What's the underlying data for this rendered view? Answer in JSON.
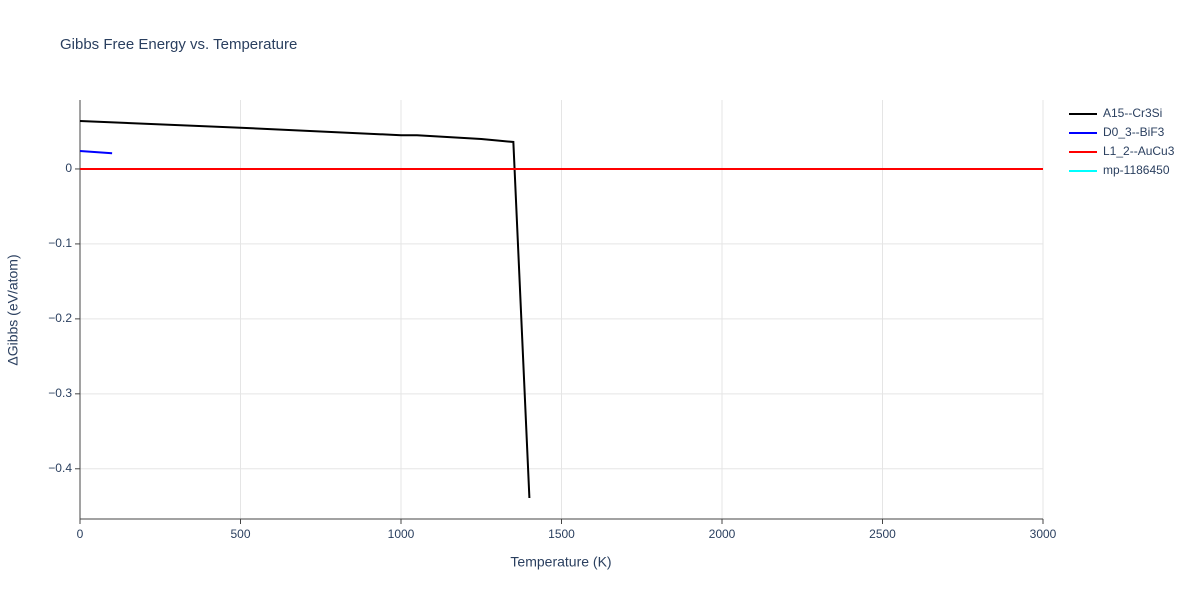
{
  "chart_data": {
    "type": "line",
    "title": "Gibbs Free Energy vs. Temperature",
    "x_label": "Temperature (K)",
    "y_label": "ΔGibbs (eV/atom)",
    "xlim": [
      0,
      3000
    ],
    "xticks": [
      0,
      500,
      1000,
      1500,
      2000,
      2500,
      3000
    ],
    "ylim": [
      -0.467,
      0.092
    ],
    "yticks": [
      {
        "value": -0.4,
        "label": "−0.4"
      },
      {
        "value": -0.3,
        "label": "−0.3"
      },
      {
        "value": -0.2,
        "label": "−0.2"
      },
      {
        "value": -0.1,
        "label": "−0.1"
      },
      0
    ],
    "grid": true,
    "legend": "right",
    "series": [
      {
        "name": "A15--Cr3Si",
        "color": "#000000",
        "x": [
          0,
          500,
          1000,
          1050,
          1250,
          1300,
          1350,
          1400
        ],
        "values": [
          0.064,
          0.055,
          0.045,
          0.045,
          0.04,
          0.038,
          0.036,
          -0.439
        ]
      },
      {
        "name": "D0_3--BiF3",
        "color": "#0000ff",
        "x": [
          0,
          100
        ],
        "values": [
          0.024,
          0.021
        ]
      },
      {
        "name": "L1_2--AuCu3",
        "color": "#ff0000",
        "x": [
          0,
          3000
        ],
        "values": [
          0,
          0
        ]
      },
      {
        "name": "mp-1186450",
        "color": "#00ffff",
        "x": [],
        "values": []
      }
    ]
  }
}
